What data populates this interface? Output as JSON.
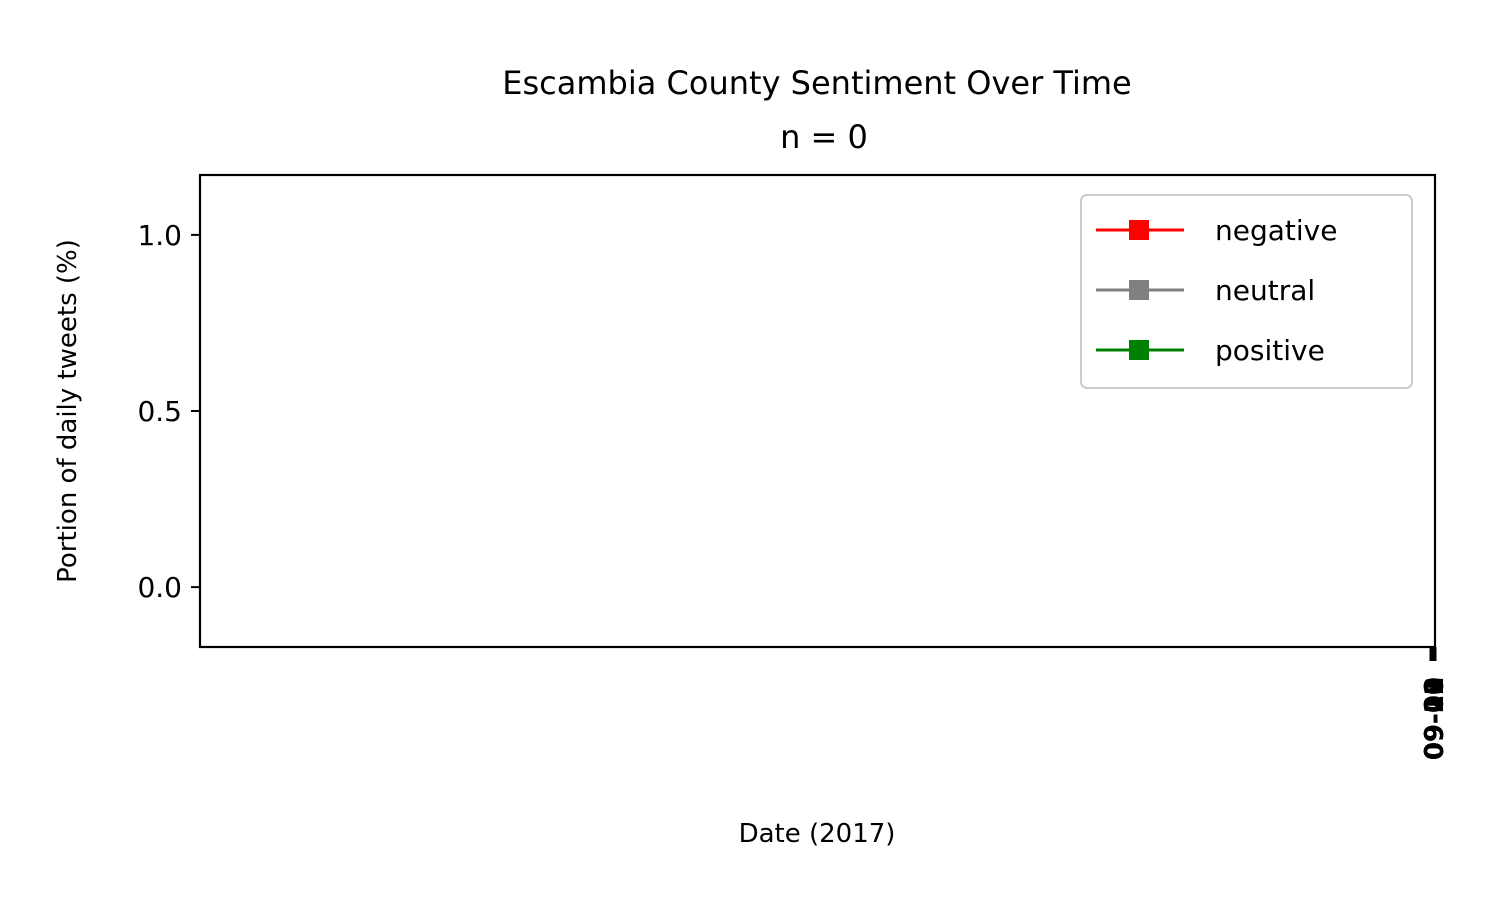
{
  "chart_data": {
    "type": "line",
    "title": "Escambia County Sentiment Over Time",
    "subtitle": "n = 0",
    "xlabel": "Date (2017)",
    "ylabel": "Portion of daily tweets (%)",
    "ylim": [
      -0.17,
      1.17
    ],
    "yticks": [
      0.0,
      0.5,
      1.0
    ],
    "ytick_labels": [
      "0.0",
      "0.5",
      "1.0"
    ],
    "xtick_labels": [
      "09-01",
      "09-12",
      "09-20",
      "09-28"
    ],
    "grid": false,
    "legend_position": "top-right",
    "series": [
      {
        "name": "negative",
        "color": "#ff0000",
        "marker": "square",
        "values": []
      },
      {
        "name": "neutral",
        "color": "#808080",
        "marker": "square",
        "values": []
      },
      {
        "name": "positive",
        "color": "#008000",
        "marker": "square",
        "values": []
      }
    ]
  }
}
